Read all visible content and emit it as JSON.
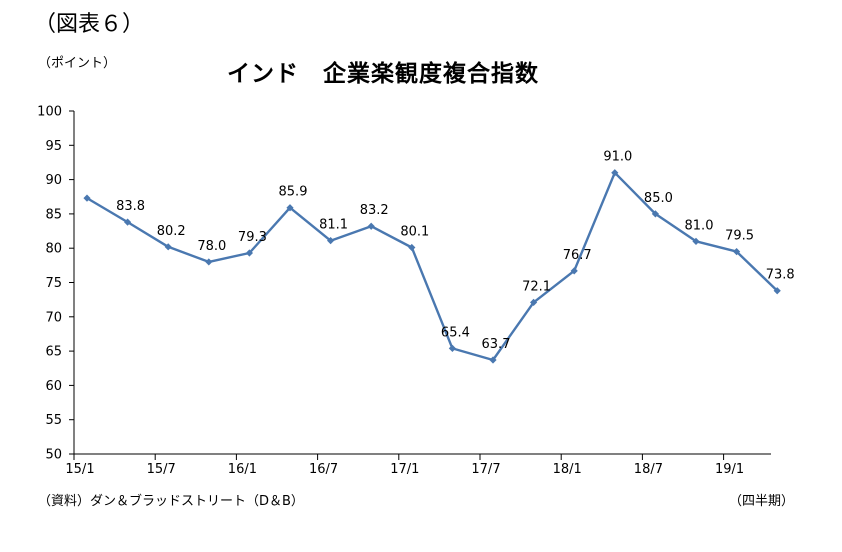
{
  "figure_label": "（図表６）",
  "source_note": "（資料）ダン＆ブラッドストリート（D＆B）",
  "period_note": "（四半期）",
  "chart_data": {
    "type": "line",
    "title": "インド　企業楽観度複合指数",
    "ylabel": "（ポイント）",
    "xlabel": "",
    "ylim": [
      50,
      100
    ],
    "yticks": [
      "50",
      "55",
      "60",
      "65",
      "70",
      "75",
      "80",
      "85",
      "90",
      "95",
      "100"
    ],
    "xtick_labels": [
      "15/1",
      "15/7",
      "16/1",
      "16/7",
      "17/1",
      "17/7",
      "18/1",
      "18/7",
      "19/1"
    ],
    "grid": false,
    "series": [
      {
        "color": "#4a78b0",
        "x": [
          "15/1",
          "15/4",
          "15/7",
          "15/10",
          "16/1",
          "16/4",
          "16/7",
          "16/10",
          "17/1",
          "17/4",
          "17/7",
          "17/10",
          "18/1",
          "18/4",
          "18/7",
          "18/10",
          "19/1",
          "19/4"
        ],
        "values": [
          87.3,
          83.8,
          80.2,
          78.0,
          79.3,
          85.9,
          81.1,
          83.2,
          80.1,
          65.4,
          63.7,
          72.1,
          76.7,
          91.0,
          85.0,
          81.0,
          79.5,
          73.8
        ],
        "labels": [
          "",
          "83.8",
          "80.2",
          "78.0",
          "79.3",
          "85.9",
          "81.1",
          "83.2",
          "80.1",
          "65.4",
          "63.7",
          "72.1",
          "76.7",
          "91.0",
          "85.0",
          "81.0",
          "79.5",
          "73.8"
        ]
      }
    ]
  }
}
